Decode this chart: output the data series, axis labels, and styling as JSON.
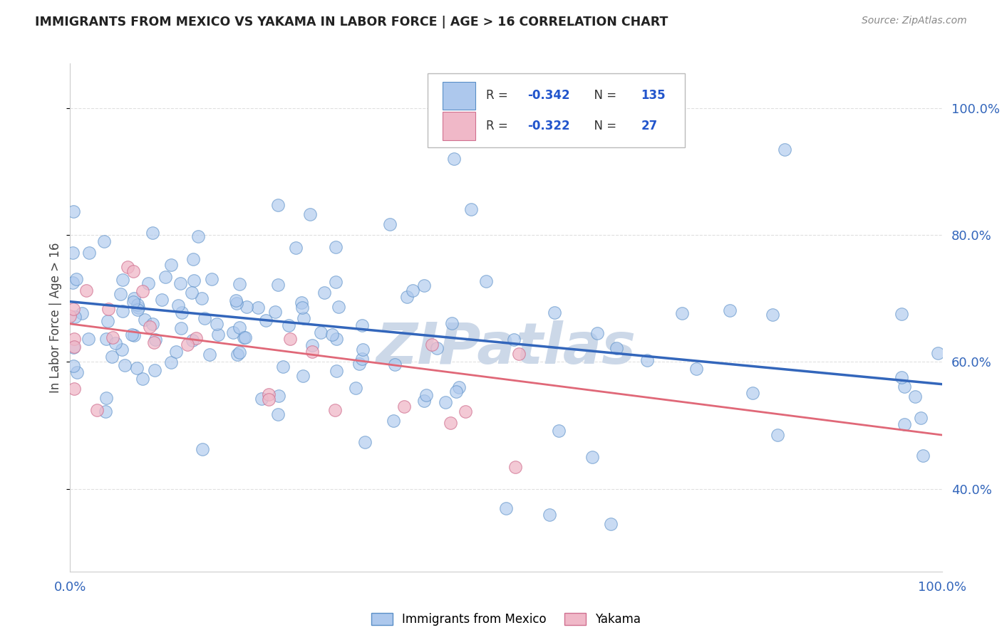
{
  "title": "IMMIGRANTS FROM MEXICO VS YAKAMA IN LABOR FORCE | AGE > 16 CORRELATION CHART",
  "source": "Source: ZipAtlas.com",
  "ylabel": "In Labor Force | Age > 16",
  "blue_R": "-0.342",
  "blue_N": "135",
  "pink_R": "-0.322",
  "pink_N": "27",
  "legend_label_blue": "Immigrants from Mexico",
  "legend_label_pink": "Yakama",
  "background_color": "#ffffff",
  "plot_bg_color": "#ffffff",
  "grid_color": "#dddddd",
  "blue_dot_color": "#adc8ed",
  "blue_dot_edge": "#5a8fc7",
  "pink_dot_color": "#f0b8c8",
  "pink_dot_edge": "#d07090",
  "blue_line_color": "#3366bb",
  "pink_line_color": "#e06878",
  "title_color": "#222222",
  "source_color": "#888888",
  "legend_r_color": "#cc2244",
  "legend_n_color": "#2255cc",
  "watermark_color": "#ccd8e8",
  "watermark_text": "ZIPatlas",
  "xlim": [
    0.0,
    1.0
  ],
  "ylim": [
    0.27,
    1.07
  ],
  "blue_trend_start_y": 0.695,
  "blue_trend_end_y": 0.565,
  "pink_trend_start_y": 0.66,
  "pink_trend_end_y": 0.485,
  "x_tick_positions": [
    0.0,
    0.5,
    1.0
  ],
  "x_tick_labels": [
    "0.0%",
    "",
    "100.0%"
  ],
  "y_tick_positions": [
    0.4,
    0.6,
    0.8,
    1.0
  ],
  "y_tick_labels": [
    "40.0%",
    "60.0%",
    "80.0%",
    "100.0%"
  ]
}
